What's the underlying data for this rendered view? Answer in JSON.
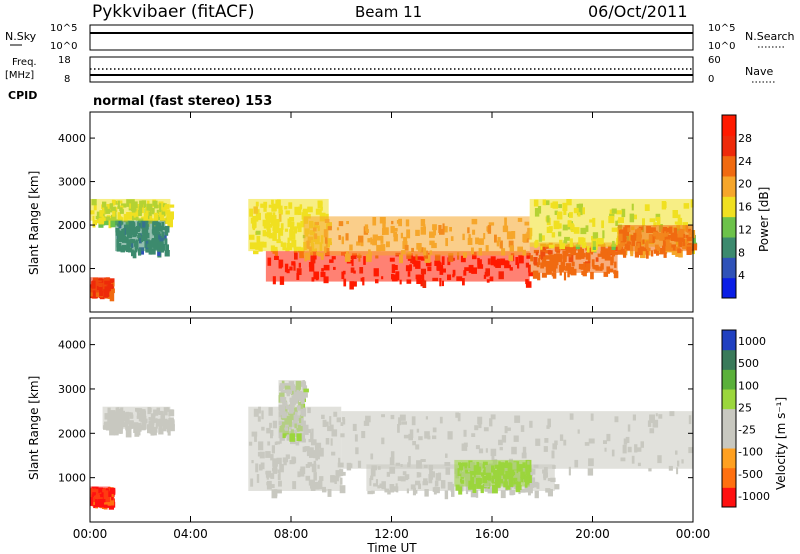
{
  "header": {
    "station": "Pykkvibaer (fitACF)",
    "beam": "Beam 11",
    "date": "06/Oct/2011"
  },
  "noise_panel": {
    "left_label": "N.Sky",
    "right_label": "N.Search",
    "left_ticks": [
      "10^5",
      "10^0"
    ],
    "right_ticks": [
      "10^5",
      "10^0"
    ]
  },
  "freq_panel": {
    "left_label_1": "Freq.",
    "left_label_2": "[MHz]",
    "right_label": "Nave",
    "left_ticks": [
      "18",
      "8"
    ],
    "right_ticks": [
      "60",
      "0"
    ]
  },
  "cpid": {
    "label": "CPID",
    "mode": "normal (fast stereo) 153"
  },
  "colors": {
    "power_scale": [
      "#0a1ee6",
      "#2f52b8",
      "#3c8a6e",
      "#6cc24a",
      "#f0e020",
      "#f6a62a",
      "#f06a10",
      "#ee2a0a",
      "#ff1a00"
    ],
    "velocity_scale": [
      "#2040c0",
      "#3a7a5a",
      "#5ab03a",
      "#9bd63c",
      "#c8c8c0",
      "#c8c8c0",
      "#ffa020",
      "#ff7010",
      "#ff1010"
    ],
    "ground_scatter": "#c8c8c0"
  },
  "chart_data": [
    {
      "type": "heatmap",
      "title": "",
      "xlabel": "Time UT",
      "ylabel": "Slant Range [km]",
      "x_ticks": [
        "00:00",
        "04:00",
        "08:00",
        "12:00",
        "16:00",
        "20:00",
        "00:00"
      ],
      "y_ticks": [
        "1000",
        "2000",
        "3000",
        "4000"
      ],
      "xlim_hours": [
        0,
        24
      ],
      "ylim_km": [
        0,
        4600
      ],
      "colorbar": {
        "label": "Power [dB]",
        "ticks": [
          "4",
          "8",
          "12",
          "16",
          "20",
          "24",
          "28"
        ],
        "range": [
          0,
          30
        ]
      },
      "regions": [
        {
          "t0": 0.0,
          "t1": 0.8,
          "r0": 450,
          "r1": 800,
          "value": 24
        },
        {
          "t0": 0.0,
          "t1": 3.2,
          "r0": 2100,
          "r1": 2600,
          "value": 14
        },
        {
          "t0": 1.0,
          "t1": 3.0,
          "r0": 1400,
          "r1": 2100,
          "value": 8
        },
        {
          "t0": 6.3,
          "t1": 9.5,
          "r0": 1400,
          "r1": 2600,
          "value": 15
        },
        {
          "t0": 7.0,
          "t1": 17.5,
          "r0": 700,
          "r1": 1400,
          "value": 28
        },
        {
          "t0": 8.5,
          "t1": 17.5,
          "r0": 1300,
          "r1": 2200,
          "value": 19
        },
        {
          "t0": 17.5,
          "t1": 21.0,
          "r0": 900,
          "r1": 1600,
          "value": 22
        },
        {
          "t0": 17.5,
          "t1": 24.0,
          "r0": 1500,
          "r1": 2600,
          "value": 14
        },
        {
          "t0": 21.0,
          "t1": 24.0,
          "r0": 1400,
          "r1": 2000,
          "value": 20
        }
      ]
    },
    {
      "type": "heatmap",
      "title": "",
      "xlabel": "Time UT",
      "ylabel": "Slant Range [km]",
      "x_ticks": [
        "00:00",
        "04:00",
        "08:00",
        "12:00",
        "16:00",
        "20:00",
        "00:00"
      ],
      "y_ticks": [
        "1000",
        "2000",
        "3000",
        "4000"
      ],
      "xlim_hours": [
        0,
        24
      ],
      "ylim_km": [
        0,
        4600
      ],
      "colorbar": {
        "label": "Velocity [m s⁻¹]",
        "ticks": [
          "1000",
          "500",
          "100",
          "25",
          "-25",
          "-100",
          "-500",
          "-1000"
        ],
        "range": [
          -1000,
          1000
        ]
      },
      "regions": [
        {
          "t0": 0.0,
          "t1": 0.8,
          "r0": 450,
          "r1": 800,
          "value": -800
        },
        {
          "t0": 0.5,
          "t1": 3.2,
          "r0": 2100,
          "r1": 2600,
          "value": 0
        },
        {
          "t0": 6.3,
          "t1": 10.0,
          "r0": 700,
          "r1": 2600,
          "value": 0
        },
        {
          "t0": 10.0,
          "t1": 24.0,
          "r0": 1200,
          "r1": 2500,
          "value": 0
        },
        {
          "t0": 11.0,
          "t1": 18.5,
          "r0": 700,
          "r1": 1300,
          "value": 0
        },
        {
          "t0": 14.5,
          "t1": 17.5,
          "r0": 800,
          "r1": 1400,
          "value": 200
        },
        {
          "t0": 7.5,
          "t1": 8.5,
          "r0": 2000,
          "r1": 3200,
          "value": 80
        }
      ]
    }
  ]
}
